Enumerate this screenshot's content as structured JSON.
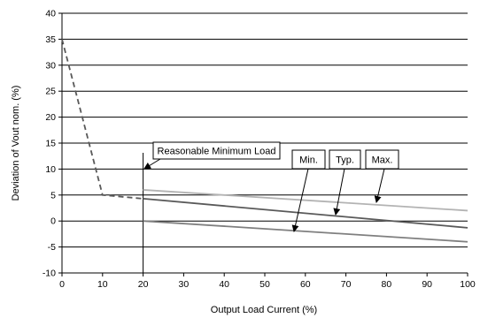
{
  "chart_data": {
    "type": "line",
    "title": "",
    "xlabel": "Output Load Current (%)",
    "ylabel": "Deviation of Vout nom. (%)",
    "xlim": [
      0,
      100
    ],
    "ylim": [
      -10,
      40
    ],
    "x_ticks": [
      0,
      10,
      20,
      30,
      40,
      50,
      60,
      70,
      80,
      90,
      100
    ],
    "y_ticks": [
      -10,
      -5,
      0,
      5,
      10,
      15,
      20,
      25,
      30,
      35,
      40
    ],
    "grid": "horizontal",
    "series": [
      {
        "name": "Min.",
        "style": "solid",
        "color": "#7f7f7f",
        "x": [
          20,
          100
        ],
        "y": [
          0,
          -4
        ]
      },
      {
        "name": "Typ.",
        "style": "solid",
        "color": "#595959",
        "x": [
          20,
          100
        ],
        "y": [
          4.3,
          -1.3
        ]
      },
      {
        "name": "Max.",
        "style": "solid",
        "color": "#b3b3b3",
        "x": [
          20,
          100
        ],
        "y": [
          6,
          2
        ]
      },
      {
        "name": "",
        "style": "dashed",
        "color": "#595959",
        "x": [
          0,
          10,
          20
        ],
        "y": [
          35,
          5,
          4.3
        ]
      }
    ],
    "annotations": [
      {
        "text": "Reasonable Minimum Load",
        "target_x": 20,
        "vline_x": 20
      },
      {
        "text": "Min.",
        "target_series": "Min."
      },
      {
        "text": "Typ.",
        "target_series": "Typ."
      },
      {
        "text": "Max.",
        "target_series": "Max."
      }
    ]
  }
}
